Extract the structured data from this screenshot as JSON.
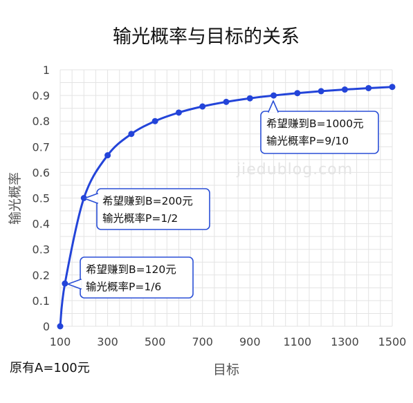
{
  "chart_data": {
    "type": "line",
    "title": "输光概率与目标的关系",
    "xlabel": "目标",
    "ylabel": "输光概率",
    "xlim": [
      100,
      1500
    ],
    "ylim": [
      0,
      1
    ],
    "x_ticks": [
      "100",
      "300",
      "500",
      "700",
      "900",
      "1100",
      "1300",
      "1500"
    ],
    "y_ticks": [
      "0",
      "0.1",
      "0.2",
      "0.3",
      "0.4",
      "0.5",
      "0.6",
      "0.7",
      "0.8",
      "0.9",
      "1"
    ],
    "grid": true,
    "series": [
      {
        "x": [
          100,
          120,
          200,
          300,
          400,
          500,
          600,
          700,
          800,
          900,
          1000,
          1100,
          1200,
          1300,
          1400,
          1500
        ],
        "y": [
          0,
          0.1667,
          0.5,
          0.6667,
          0.75,
          0.8,
          0.8333,
          0.8571,
          0.875,
          0.8889,
          0.9,
          0.9091,
          0.9167,
          0.9231,
          0.9286,
          0.9333
        ]
      }
    ],
    "annotations": [
      {
        "x": 120,
        "y": 0.1667,
        "lines": [
          "希望赚到B=120元",
          "输光概率P=1/6"
        ]
      },
      {
        "x": 200,
        "y": 0.5,
        "lines": [
          "希望赚到B=200元",
          "输光概率P=1/2"
        ]
      },
      {
        "x": 1000,
        "y": 0.9,
        "lines": [
          "希望赚到B=1000元",
          "输光概率P=9/10"
        ]
      }
    ],
    "note": "原有A=100元",
    "watermark": "jiedublog.com",
    "colors": {
      "line": "#2344d9",
      "callout_border": "#2a4fd6",
      "grid": "#e3e3e3"
    }
  }
}
